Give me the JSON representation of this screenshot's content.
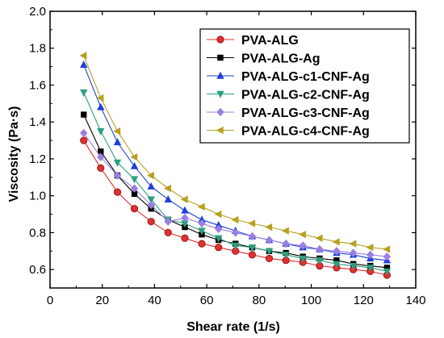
{
  "chart_data": {
    "type": "line",
    "title": "",
    "xlabel": "Shear rate (1/s)",
    "ylabel": "Viscosity (Pa·s)",
    "xlim": [
      0,
      140
    ],
    "ylim": [
      0.5,
      2.0
    ],
    "xticks": [
      0,
      20,
      40,
      60,
      80,
      100,
      120,
      140
    ],
    "yticks": [
      0.6,
      0.8,
      1.0,
      1.2,
      1.4,
      1.6,
      1.8,
      2.0
    ],
    "xtick_labels": [
      "0",
      "20",
      "40",
      "60",
      "80",
      "100",
      "120",
      "140"
    ],
    "ytick_labels": [
      "0.6",
      "0.8",
      "1.0",
      "1.2",
      "1.4",
      "1.6",
      "1.8",
      "2.0"
    ],
    "grid": false,
    "legend_position": "top-right",
    "x": [
      12.9,
      19.4,
      25.8,
      32.3,
      38.7,
      45.2,
      51.6,
      58.1,
      64.5,
      71.0,
      77.4,
      83.9,
      90.3,
      96.8,
      103.2,
      109.7,
      116.1,
      122.6,
      129.0
    ],
    "series": [
      {
        "name": "PVA-ALG",
        "color": "#e03030",
        "marker": "circle",
        "values": [
          1.3,
          1.15,
          1.02,
          0.93,
          0.86,
          0.8,
          0.77,
          0.74,
          0.72,
          0.7,
          0.68,
          0.66,
          0.65,
          0.64,
          0.62,
          0.61,
          0.6,
          0.59,
          0.57
        ]
      },
      {
        "name": "PVA-ALG-Ag",
        "color": "#000000",
        "marker": "square",
        "values": [
          1.44,
          1.24,
          1.11,
          1.01,
          0.93,
          0.87,
          0.83,
          0.79,
          0.76,
          0.74,
          0.72,
          0.7,
          0.69,
          0.67,
          0.66,
          0.65,
          0.63,
          0.62,
          0.61
        ]
      },
      {
        "name": "PVA-ALG-c1-CNF-Ag",
        "color": "#1f3fd6",
        "marker": "triangle-up",
        "values": [
          1.71,
          1.48,
          1.29,
          1.16,
          1.05,
          0.98,
          0.92,
          0.87,
          0.84,
          0.81,
          0.78,
          0.76,
          0.74,
          0.72,
          0.71,
          0.69,
          0.68,
          0.66,
          0.65
        ]
      },
      {
        "name": "PVA-ALG-c2-CNF-Ag",
        "color": "#2e9e80",
        "marker": "triangle-down",
        "values": [
          1.56,
          1.35,
          1.18,
          1.09,
          0.98,
          0.87,
          0.85,
          0.81,
          0.77,
          0.73,
          0.72,
          0.7,
          0.68,
          0.66,
          0.65,
          0.63,
          0.62,
          0.61,
          0.59
        ]
      },
      {
        "name": "PVA-ALG-c3-CNF-Ag",
        "color": "#9b7fe0",
        "marker": "diamond",
        "values": [
          1.34,
          1.21,
          1.11,
          1.04,
          0.95,
          0.86,
          0.88,
          0.85,
          0.82,
          0.8,
          0.78,
          0.76,
          0.74,
          0.73,
          0.71,
          0.7,
          0.69,
          0.68,
          0.67
        ]
      },
      {
        "name": "PVA-ALG-c4-CNF-Ag",
        "color": "#b8a020",
        "marker": "triangle-left",
        "values": [
          1.76,
          1.53,
          1.35,
          1.21,
          1.11,
          1.04,
          0.98,
          0.94,
          0.9,
          0.87,
          0.85,
          0.83,
          0.81,
          0.79,
          0.77,
          0.75,
          0.74,
          0.72,
          0.71
        ]
      }
    ]
  }
}
